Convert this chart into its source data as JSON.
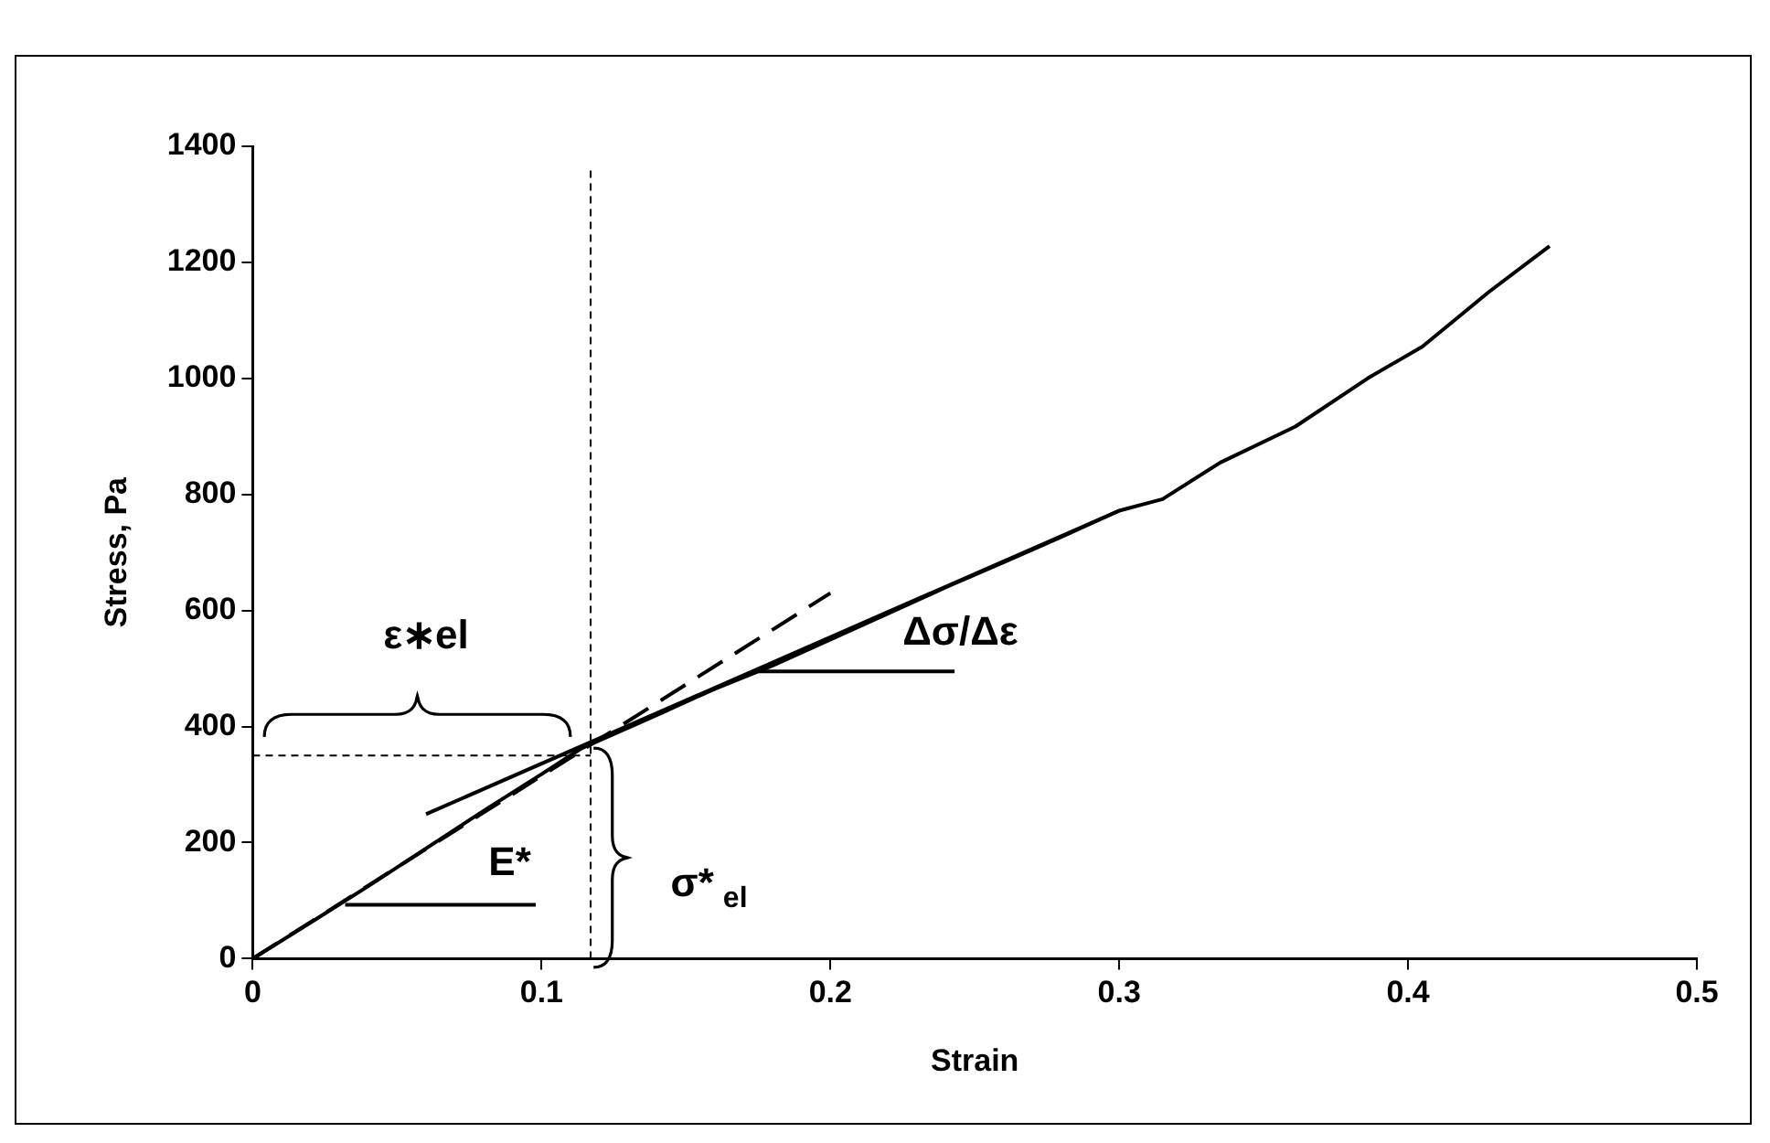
{
  "chart_data": {
    "type": "line",
    "xlabel": "Strain",
    "ylabel": "Stress, Pa",
    "xlim": [
      0,
      0.5
    ],
    "xticks": [
      0,
      0.1,
      0.2,
      0.3,
      0.4,
      0.5
    ],
    "ylim": [
      0,
      1400
    ],
    "yticks": [
      0,
      200,
      400,
      600,
      800,
      1000,
      1200,
      1400
    ],
    "grid": false,
    "legend": false,
    "marker": "none",
    "series": [
      {
        "type": "line",
        "color": "#000000",
        "line_style": "solid",
        "x": [
          0,
          0.02,
          0.04,
          0.06,
          0.08,
          0.1,
          0.114,
          0.14,
          0.16,
          0.18,
          0.2,
          0.22,
          0.24,
          0.26,
          0.28,
          0.3,
          0.315,
          0.335,
          0.361,
          0.386,
          0.405,
          0.428,
          0.449
        ],
        "values": [
          0,
          62,
          125,
          190,
          255,
          318,
          363,
          420,
          465,
          505,
          550,
          595,
          640,
          683,
          727,
          772,
          792,
          855,
          917,
          1000,
          1055,
          1149,
          1228
        ]
      },
      {
        "type": "line",
        "color": "#000000",
        "line_style": "dashed",
        "x": [
          0,
          0.2
        ],
        "values": [
          0,
          630
        ]
      },
      {
        "type": "line",
        "color": "#000000",
        "line_style": "solid",
        "x": [
          0.06,
          0.3
        ],
        "values": [
          249,
          772
        ]
      },
      {
        "type": "line",
        "color": "#000000",
        "line_style": "dotted",
        "x": [
          0.117,
          0.117
        ],
        "values": [
          0,
          1360
        ]
      },
      {
        "type": "line",
        "color": "#000000",
        "line_style": "dotted",
        "x": [
          0,
          0.117
        ],
        "values": [
          350,
          350
        ]
      },
      {
        "type": "line",
        "color": "#000000",
        "line_style": "solid",
        "x": [
          0.032,
          0.098
        ],
        "values": [
          93,
          93
        ]
      },
      {
        "type": "line",
        "color": "#000000",
        "line_style": "solid",
        "x": [
          0.175,
          0.243
        ],
        "values": [
          495,
          495
        ]
      }
    ],
    "annotations": [
      "ε∗el",
      "E*",
      "σ*$_{el}$",
      "Δσ/Δε"
    ]
  }
}
